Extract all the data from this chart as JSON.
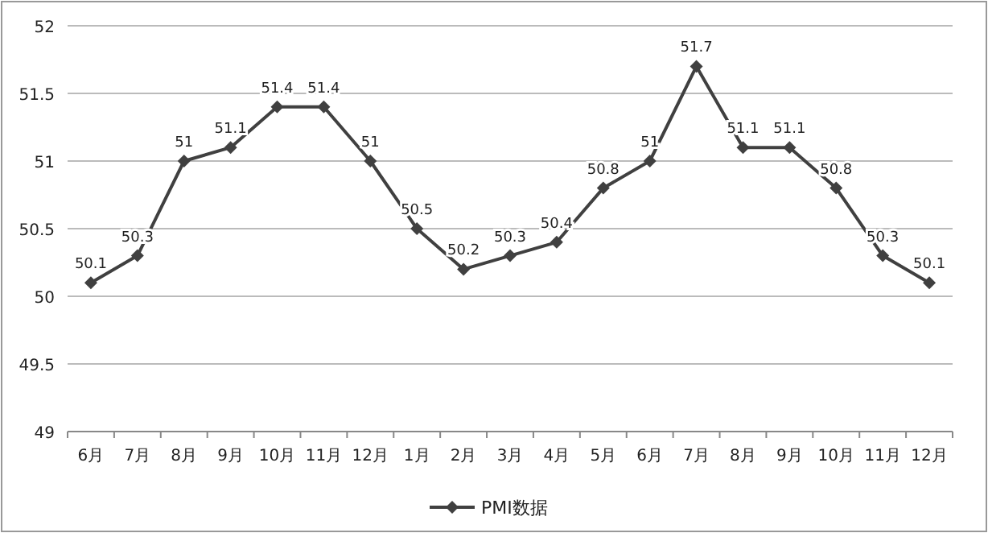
{
  "chart_data": {
    "type": "line",
    "categories": [
      "6月",
      "7月",
      "8月",
      "9月",
      "10月",
      "11月",
      "12月",
      "1月",
      "2月",
      "3月",
      "4月",
      "5月",
      "6月",
      "7月",
      "8月",
      "9月",
      "10月",
      "11月",
      "12月"
    ],
    "series": [
      {
        "name": "PMI数据",
        "color": "#404040",
        "values": [
          50.1,
          50.3,
          51,
          51.1,
          51.4,
          51.4,
          51,
          50.5,
          50.2,
          50.3,
          50.4,
          50.8,
          51,
          51.7,
          51.1,
          51.1,
          50.8,
          50.3,
          50.1
        ]
      }
    ],
    "ylim": [
      49,
      52
    ],
    "yticks": [
      49,
      49.5,
      50,
      50.5,
      51,
      51.5,
      52
    ],
    "grid": "y",
    "legend": "bottom",
    "marker": "diamond",
    "line_style": "solid",
    "data_labels": true
  }
}
